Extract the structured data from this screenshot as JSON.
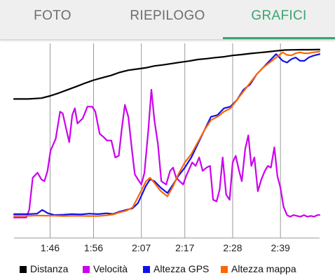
{
  "tabs": [
    {
      "label": "FOTO",
      "active": false
    },
    {
      "label": "RIEPILOGO",
      "active": false
    },
    {
      "label": "GRAFICI",
      "active": true
    }
  ],
  "colors": {
    "accent": "#3aa46d",
    "grid": "#9a9a9a",
    "axis_text": "#222222"
  },
  "chart_data": {
    "type": "line",
    "xlabel": "",
    "ylabel": "",
    "x_unit": "minutes",
    "xlim": [
      97.7,
      168.0
    ],
    "x_ticks": [
      {
        "label": "1:46",
        "value": 106
      },
      {
        "label": "1:56",
        "value": 116
      },
      {
        "label": "2:07",
        "value": 127
      },
      {
        "label": "2:17",
        "value": 137
      },
      {
        "label": "2:28",
        "value": 148
      },
      {
        "label": "2:39",
        "value": 159
      }
    ],
    "grid": {
      "vertical": true,
      "horizontal": false
    },
    "y_axis_labels": false,
    "legend_position": "bottom",
    "series": [
      {
        "name": "Distanza",
        "color": "#000000",
        "ylim": [
          0,
          100
        ],
        "x": [
          97.7,
          101,
          104,
          106,
          108,
          110,
          112,
          114,
          116,
          118,
          120,
          122,
          124,
          126,
          128,
          130,
          132,
          134,
          136,
          138,
          140,
          142,
          144,
          146,
          148,
          150,
          152,
          154,
          156,
          158,
          160,
          162,
          164,
          166,
          168
        ],
        "y": [
          70.5,
          70.5,
          71.0,
          72.3,
          74.0,
          75.9,
          77.8,
          79.8,
          81.6,
          83.0,
          84.4,
          86.2,
          87.5,
          88.2,
          88.9,
          90.0,
          90.6,
          91.4,
          92.2,
          92.9,
          93.8,
          94.3,
          94.9,
          95.4,
          96.2,
          96.7,
          97.3,
          97.8,
          98.3,
          98.9,
          99.4,
          99.5,
          99.6,
          99.6,
          99.7
        ]
      },
      {
        "name": "Velocità",
        "color": "#cc00ee",
        "ylim": [
          0,
          100
        ],
        "x": [
          97.7,
          100.5,
          101.2,
          102.0,
          103.1,
          104.0,
          104.7,
          105.4,
          106.1,
          107.3,
          108.3,
          108.9,
          109.6,
          110.4,
          111.1,
          111.7,
          112.3,
          113.5,
          114.6,
          115.7,
          116.4,
          117.4,
          118.3,
          119.1,
          120.1,
          121.0,
          121.8,
          122.5,
          123.2,
          124.0,
          124.8,
          125.5,
          126.2,
          127.0,
          127.7,
          128.6,
          129.3,
          130.0,
          130.8,
          131.6,
          132.7,
          133.6,
          134.3,
          135.0,
          135.8,
          136.6,
          137.3,
          138.0,
          138.7,
          139.5,
          140.3,
          141.1,
          142.0,
          142.8,
          143.5,
          144.3,
          145.0,
          145.7,
          146.5,
          147.3,
          148.0,
          148.7,
          149.4,
          150.1,
          150.9,
          151.6,
          152.3,
          153.0,
          153.8,
          154.6,
          155.4,
          156.1,
          156.8,
          157.6,
          158.3,
          159.0,
          159.7,
          160.5,
          161.2,
          162.0,
          162.8,
          163.6,
          164.4,
          165.2,
          166.0,
          166.7,
          167.5,
          168.0
        ],
        "y": [
          0.5,
          0.5,
          5,
          24,
          27,
          23,
          22,
          28,
          40,
          47,
          63,
          62,
          54,
          45,
          61,
          65,
          56,
          59,
          66,
          66,
          63,
          50,
          48,
          46,
          46,
          36,
          37,
          53,
          67,
          60,
          41,
          26,
          23,
          20,
          27,
          52,
          76,
          58,
          44,
          22,
          20,
          28,
          30,
          24,
          22,
          20,
          25,
          29,
          33,
          31,
          36,
          28,
          30,
          31,
          11,
          10,
          17,
          36,
          14,
          11,
          33,
          37,
          29,
          22,
          41,
          49,
          31,
          36,
          16,
          23,
          28,
          31,
          30,
          42,
          25,
          18,
          7,
          2,
          1,
          2,
          1.5,
          1,
          2,
          1,
          1.5,
          1,
          2,
          2
        ]
      },
      {
        "name": "Altezza GPS",
        "color": "#1010ee",
        "ylim": [
          0,
          100
        ],
        "x": [
          97.7,
          101,
          103,
          104.2,
          105.5,
          107,
          109,
          111,
          113,
          115,
          117,
          119,
          120.5,
          122,
          123.5,
          125,
          126.2,
          127.3,
          128,
          129,
          130,
          131.5,
          133,
          134.3,
          135.5,
          137,
          138.5,
          140,
          141.5,
          143,
          144.5,
          146,
          147.5,
          149,
          150.5,
          152,
          153.5,
          155,
          156.5,
          158,
          159.5,
          160.5,
          161.5,
          162.5,
          163.5,
          164.5,
          165.5,
          166.5,
          168
        ],
        "y": [
          2.5,
          2.5,
          2.8,
          5,
          3,
          2,
          2.2,
          2.5,
          2.3,
          2.8,
          2.5,
          3,
          2.6,
          4,
          5,
          6,
          9,
          15,
          19,
          23,
          22,
          18,
          15,
          20,
          25,
          30,
          36,
          44,
          52,
          60,
          61,
          65,
          66,
          70,
          76,
          79,
          85,
          89,
          93,
          97,
          93,
          92,
          94,
          95,
          93,
          93,
          95,
          96,
          97
        ]
      },
      {
        "name": "Altezza mappa",
        "color": "#ff6600",
        "ylim": [
          0,
          100
        ],
        "x": [
          97.7,
          101,
          103,
          105,
          107,
          109,
          111,
          113,
          115,
          117,
          119,
          120.5,
          122,
          123.5,
          125,
          126.3,
          127.3,
          128.1,
          129,
          130,
          131.5,
          133,
          134.3,
          135.5,
          137,
          138.5,
          140,
          141.5,
          143,
          144.5,
          146,
          147.5,
          149,
          150.5,
          152,
          153.5,
          155,
          156.5,
          158,
          159.5,
          160.5,
          161.5,
          162.5,
          163.5,
          164.5,
          165.5,
          166.5,
          168
        ],
        "y": [
          1.5,
          1.5,
          1.7,
          1.6,
          1.6,
          1.4,
          1.5,
          1.5,
          1.4,
          1.4,
          1.8,
          2.3,
          3.6,
          4.5,
          6.5,
          13,
          18,
          22,
          24,
          21,
          16,
          13,
          19,
          26,
          33,
          38,
          45,
          52,
          58,
          60,
          63,
          65,
          70,
          75,
          80,
          85,
          89,
          92,
          95,
          98,
          96.5,
          96.2,
          97.5,
          98,
          97.5,
          97.5,
          98,
          98.5
        ]
      }
    ]
  }
}
